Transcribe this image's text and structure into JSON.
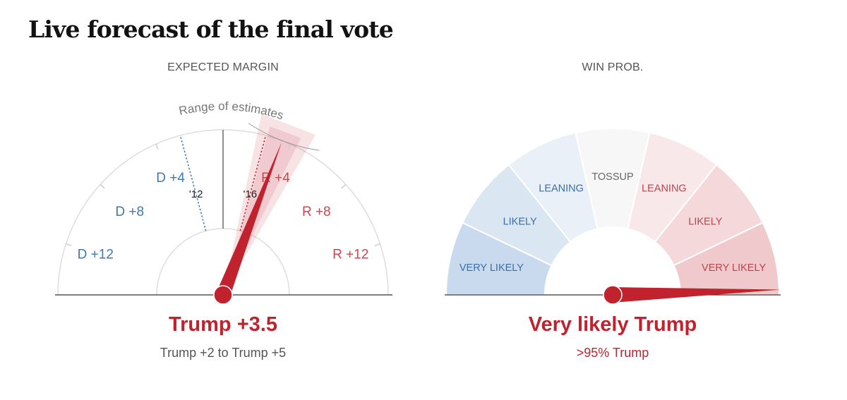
{
  "title": "Live forecast of the final vote",
  "colors": {
    "democrat": "#3f79b5",
    "republican": "#c0222e",
    "republican_label": "#d0434a"
  },
  "chart_data": [
    {
      "type": "gauge",
      "title": "EXPECTED MARGIN",
      "scale_range": [
        -15,
        15
      ],
      "value": 3.5,
      "range_of_estimates": [
        2,
        5
      ],
      "range_annotation": "Range of estimates",
      "tick_labels": [
        {
          "value": -12,
          "label": "D +12",
          "party": "democrat"
        },
        {
          "value": -8,
          "label": "D +8",
          "party": "democrat"
        },
        {
          "value": -4,
          "label": "D +4",
          "party": "democrat"
        },
        {
          "value": 4,
          "label": "R +4",
          "party": "republican"
        },
        {
          "value": 8,
          "label": "R +8",
          "party": "republican"
        },
        {
          "value": 12,
          "label": "R +12",
          "party": "republican"
        }
      ],
      "reference_lines": [
        {
          "label": "'12",
          "value": -2.5,
          "party": "democrat"
        },
        {
          "label": "'16",
          "value": 2.5,
          "party": "republican"
        }
      ],
      "headline": "Trump +3.5",
      "subtext": "Trump +2 to Trump +5"
    },
    {
      "type": "gauge",
      "title": "WIN PROB.",
      "scale_range": [
        0,
        100
      ],
      "value": 99,
      "zones": [
        {
          "label": "VERY LIKELY",
          "party": "democrat",
          "color": "#c9daee"
        },
        {
          "label": "LIKELY",
          "party": "democrat",
          "color": "#dae6f2"
        },
        {
          "label": "LEANING",
          "party": "democrat",
          "color": "#e9f0f7"
        },
        {
          "label": "TOSSUP",
          "party": "neutral",
          "color": "#f7f7f7"
        },
        {
          "label": "LEANING",
          "party": "republican",
          "color": "#f9e8e9"
        },
        {
          "label": "LIKELY",
          "party": "republican",
          "color": "#f4d8da"
        },
        {
          "label": "VERY LIKELY",
          "party": "republican",
          "color": "#efc9cc"
        }
      ],
      "headline": "Very likely Trump",
      "subtext": ">95% Trump"
    }
  ]
}
